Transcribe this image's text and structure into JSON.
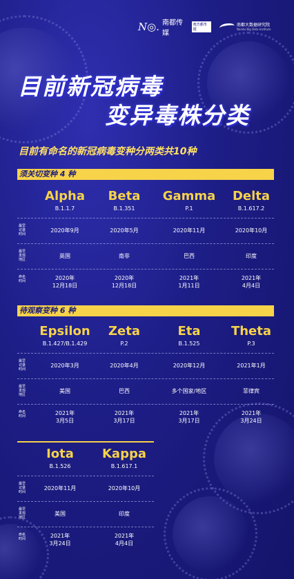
{
  "header": {
    "logo_left_mark": "N◎.",
    "logo_left_text": "南都传媒",
    "logo_left_box": "南方都市报",
    "logo_right_text": "南都大数据研究院",
    "logo_right_sub": "Nandu Big Data Institute"
  },
  "title_line1": "目前新冠病毒",
  "title_line2": "变异毒株分类",
  "subtitle": "目前有命名的新冠病毒变种分两类共10种",
  "row_labels": {
    "first_record": "最早记录时间",
    "first_found": "最早发现地区",
    "naming": "命名时间"
  },
  "section1": {
    "title": "须关切变种 4 种",
    "variants": [
      {
        "name": "Alpha",
        "code": "B.1.1.7",
        "record": "2020年9月",
        "place": "英国",
        "named_line1": "2020年",
        "named_line2": "12月18日"
      },
      {
        "name": "Beta",
        "code": "B.1.351",
        "record": "2020年5月",
        "place": "南非",
        "named_line1": "2020年",
        "named_line2": "12月18日"
      },
      {
        "name": "Gamma",
        "code": "P.1",
        "record": "2020年11月",
        "place": "巴西",
        "named_line1": "2021年",
        "named_line2": "1月11日"
      },
      {
        "name": "Delta",
        "code": "B.1.617.2",
        "record": "2020年10月",
        "place": "印度",
        "named_line1": "2021年",
        "named_line2": "4月4日"
      }
    ]
  },
  "section2": {
    "title": "待观察变种 6 种",
    "variants": [
      {
        "name": "Epsilon",
        "code": "B.1.427/B.1.429",
        "record": "2020年3月",
        "place": "美国",
        "named_line1": "2021年",
        "named_line2": "3月5日"
      },
      {
        "name": "Zeta",
        "code": "P.2",
        "record": "2020年4月",
        "place": "巴西",
        "named_line1": "2021年",
        "named_line2": "3月17日"
      },
      {
        "name": "Eta",
        "code": "B.1.525",
        "record": "2020年12月",
        "place": "多个国家/地区",
        "named_line1": "2021年",
        "named_line2": "3月17日"
      },
      {
        "name": "Theta",
        "code": "P.3",
        "record": "2021年1月",
        "place": "菲律宾",
        "named_line1": "2021年",
        "named_line2": "3月24日"
      }
    ]
  },
  "section3": {
    "variants": [
      {
        "name": "Iota",
        "code": "B.1.526",
        "record": "2020年11月",
        "place": "美国",
        "named_line1": "2021年",
        "named_line2": "3月24日"
      },
      {
        "name": "Kappa",
        "code": "B.1.617.1",
        "record": "2020年10月",
        "place": "印度",
        "named_line1": "2021年",
        "named_line2": "4月4日"
      }
    ]
  }
}
